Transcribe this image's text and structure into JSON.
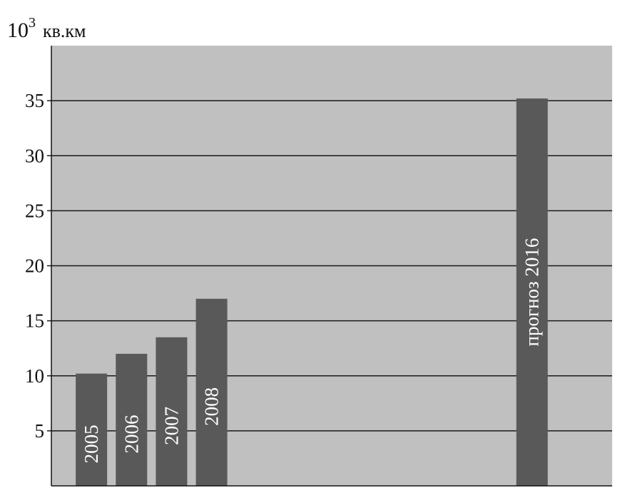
{
  "chart_data": {
    "type": "bar",
    "ylabel_base": "10",
    "ylabel_exp": "3",
    "ylabel_unit": "кв.км",
    "ylim": [
      0,
      40
    ],
    "yticks": [
      5,
      10,
      15,
      20,
      25,
      30,
      35
    ],
    "grid": true,
    "legend": "none",
    "categories": [
      "2005",
      "2006",
      "2007",
      "2008",
      "прогноз 2016"
    ],
    "x_positions": [
      1,
      2,
      3,
      4,
      12
    ],
    "x_slots": 14,
    "values": [
      10.2,
      12.0,
      13.5,
      17.0,
      35.2
    ],
    "colors": {
      "plot_bg": "#c0c0c0",
      "bar": "#595959",
      "grid": "#1a1a1a",
      "bar_label": "#ffffff"
    }
  }
}
